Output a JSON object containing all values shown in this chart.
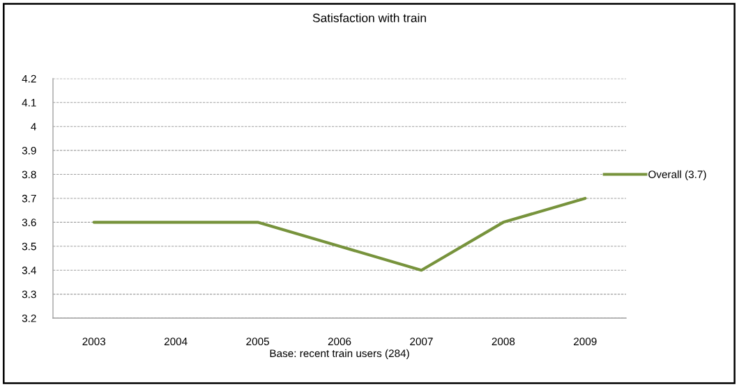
{
  "chart_data": {
    "type": "line",
    "title": "Satisfaction with train",
    "xlabel": "Base: recent train users (284)",
    "categories": [
      "2003",
      "2004",
      "2005",
      "2006",
      "2007",
      "2008",
      "2009"
    ],
    "series": [
      {
        "name": "Overall (3.7)",
        "color": "#77933c",
        "values": [
          3.6,
          3.6,
          3.6,
          3.5,
          3.4,
          3.6,
          3.7
        ]
      }
    ],
    "ylim": [
      3.2,
      4.2
    ],
    "yticks": [
      3.2,
      3.3,
      3.4,
      3.5,
      3.6,
      3.7,
      3.8,
      3.9,
      4,
      4.1,
      4.2
    ],
    "grid": "y",
    "legend": "right",
    "marker": "none",
    "line_style": "solid"
  }
}
